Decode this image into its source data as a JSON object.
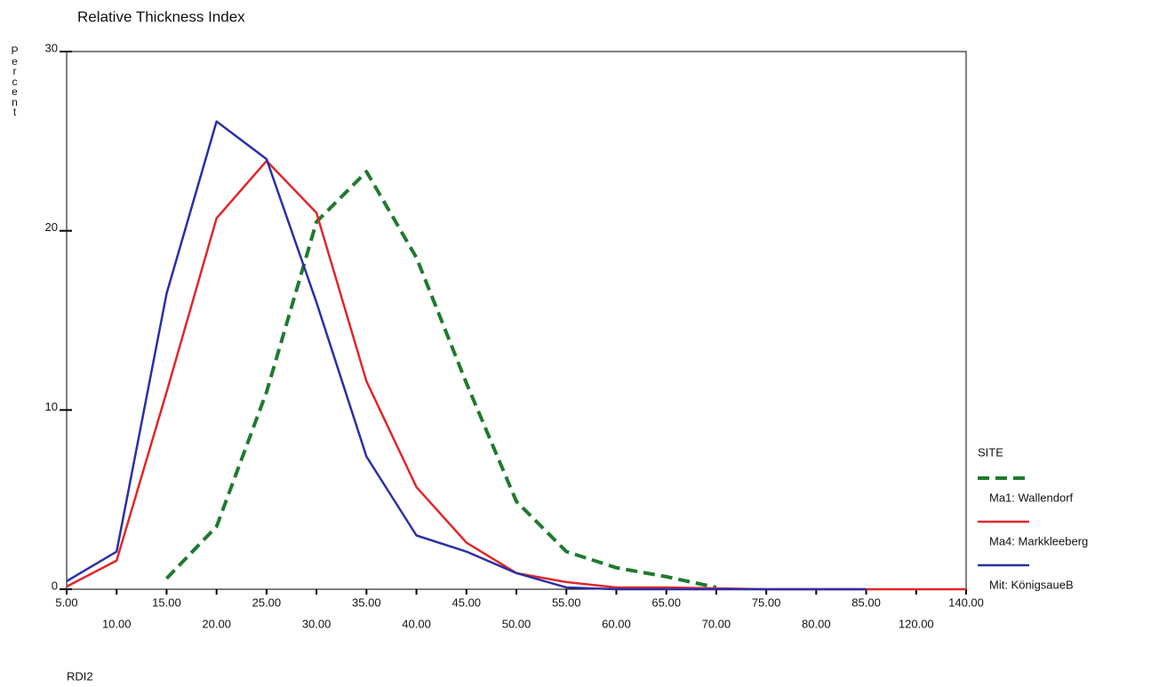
{
  "chart_data": {
    "type": "line",
    "title": "Relative Thickness Index",
    "y_label": "Percent",
    "x_label": "RDI2",
    "categories": [
      "5.00",
      "10.00",
      "15.00",
      "20.00",
      "25.00",
      "30.00",
      "35.00",
      "40.00",
      "45.00",
      "50.00",
      "55.00",
      "60.00",
      "65.00",
      "70.00",
      "75.00",
      "80.00",
      "85.00",
      "120.00",
      "140.00"
    ],
    "series": [
      {
        "name": "Ma1: Wallendorf",
        "color": "#1f7a2e",
        "style": "dashed",
        "values": [
          null,
          null,
          0.6,
          3.5,
          11.0,
          20.5,
          23.3,
          18.5,
          11.5,
          4.9,
          2.1,
          1.2,
          0.7,
          0.1,
          null,
          null,
          null,
          null,
          null
        ]
      },
      {
        "name": "Ma4: Markkleeberg",
        "color": "#e0262a",
        "style": "solid",
        "values": [
          0.15,
          1.6,
          11.0,
          20.7,
          23.9,
          21.0,
          11.6,
          5.7,
          2.6,
          0.9,
          0.4,
          0.1,
          0.1,
          0.05,
          0.0,
          0.0,
          0.0,
          0.0,
          0.0
        ]
      },
      {
        "name": "Mit: KönigsaueB",
        "color": "#2b2fa6",
        "style": "solid",
        "values": [
          0.45,
          2.1,
          16.5,
          26.1,
          24.0,
          16.0,
          7.4,
          3.0,
          2.1,
          0.9,
          0.1,
          0.0,
          0.0,
          0.0,
          0.0,
          0.0,
          0.0,
          null,
          null
        ]
      }
    ],
    "legend_title": "SITE",
    "legend": "right",
    "ylim": [
      0,
      30
    ],
    "yticks": [
      0,
      10,
      20,
      30
    ],
    "grid": false
  }
}
